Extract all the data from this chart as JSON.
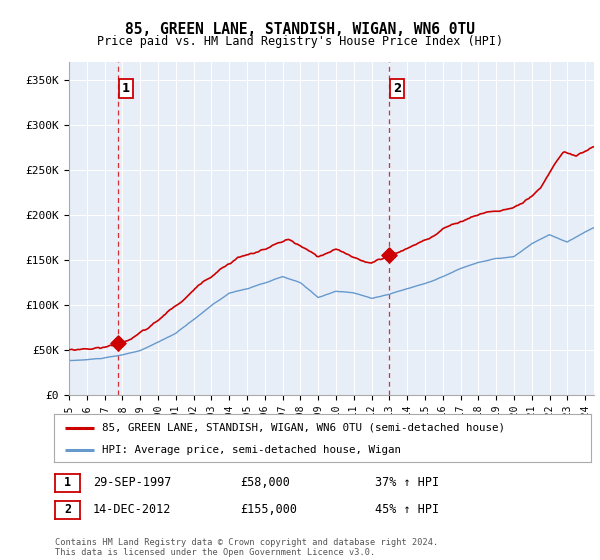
{
  "title": "85, GREEN LANE, STANDISH, WIGAN, WN6 0TU",
  "subtitle": "Price paid vs. HM Land Registry's House Price Index (HPI)",
  "legend_property": "85, GREEN LANE, STANDISH, WIGAN, WN6 0TU (semi-detached house)",
  "legend_hpi": "HPI: Average price, semi-detached house, Wigan",
  "footer": "Contains HM Land Registry data © Crown copyright and database right 2024.\nThis data is licensed under the Open Government Licence v3.0.",
  "sale1_label": "1",
  "sale1_date": "29-SEP-1997",
  "sale1_price": "£58,000",
  "sale1_hpi": "37% ↑ HPI",
  "sale2_label": "2",
  "sale2_date": "14-DEC-2012",
  "sale2_price": "£155,000",
  "sale2_hpi": "45% ↑ HPI",
  "ylabel_ticks": [
    "£0",
    "£50K",
    "£100K",
    "£150K",
    "£200K",
    "£250K",
    "£300K",
    "£350K"
  ],
  "ytick_vals": [
    0,
    50000,
    100000,
    150000,
    200000,
    250000,
    300000,
    350000
  ],
  "ylim": [
    0,
    370000
  ],
  "property_color": "#cc0000",
  "hpi_color": "#6699cc",
  "dashed_line_color": "#cc0000",
  "plot_bg_color": "#e8eef8",
  "sale1_year": 1997.75,
  "sale1_value": 58000,
  "sale2_year": 2012.96,
  "sale2_value": 155000,
  "xmin": 1995.0,
  "xmax": 2024.5
}
